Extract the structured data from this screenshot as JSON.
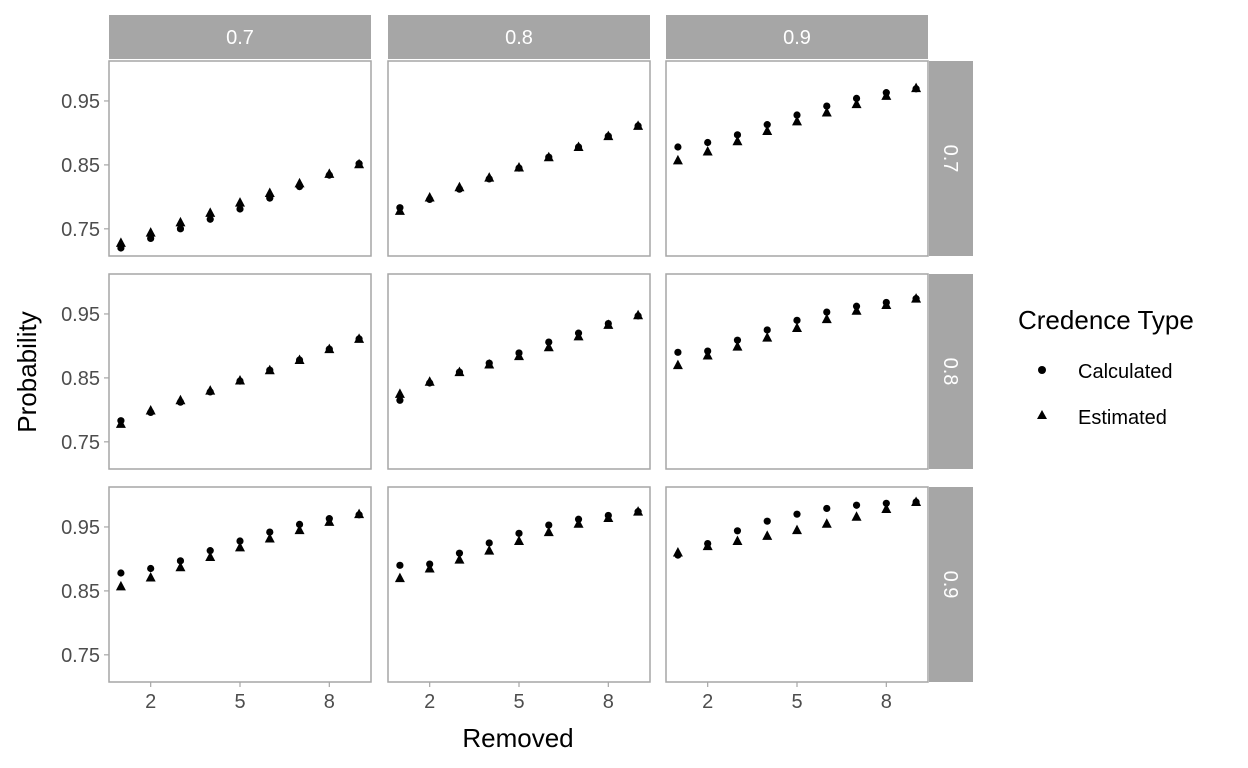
{
  "chart_data": {
    "type": "scatter",
    "facet_cols": [
      "0.7",
      "0.8",
      "0.9"
    ],
    "facet_rows": [
      "0.7",
      "0.8",
      "0.9"
    ],
    "xlabel": "Removed",
    "ylabel": "Probability",
    "x_ticks": [
      2,
      5,
      8
    ],
    "y_ticks": [
      0.75,
      0.85,
      0.95
    ],
    "x_ticks_labels": [
      "2",
      "5",
      "8"
    ],
    "y_ticks_labels": [
      "0.75",
      "0.85",
      "0.95"
    ],
    "xlim": [
      0.6,
      9.4
    ],
    "ylim": [
      0.7075,
      1.0125
    ],
    "grid": false,
    "legend": {
      "title": "Credence Type",
      "position": "right",
      "entries": [
        {
          "name": "Calculated",
          "shape": "circle"
        },
        {
          "name": "Estimated",
          "shape": "triangle"
        }
      ]
    },
    "x": [
      1,
      2,
      3,
      4,
      5,
      6,
      7,
      8,
      9
    ],
    "panels": [
      {
        "col": "0.7",
        "row": "0.7",
        "calculated": [
          0.72,
          0.735,
          0.75,
          0.765,
          0.781,
          0.798,
          0.816,
          0.834,
          0.852
        ],
        "estimated": [
          0.728,
          0.744,
          0.76,
          0.775,
          0.791,
          0.806,
          0.821,
          0.836,
          0.851
        ]
      },
      {
        "col": "0.8",
        "row": "0.7",
        "calculated": [
          0.783,
          0.796,
          0.812,
          0.828,
          0.845,
          0.862,
          0.878,
          0.895,
          0.911
        ],
        "estimated": [
          0.778,
          0.799,
          0.815,
          0.83,
          0.846,
          0.862,
          0.878,
          0.895,
          0.911
        ]
      },
      {
        "col": "0.9",
        "row": "0.7",
        "calculated": [
          0.878,
          0.885,
          0.897,
          0.913,
          0.928,
          0.942,
          0.954,
          0.963,
          0.969
        ],
        "estimated": [
          0.857,
          0.871,
          0.887,
          0.903,
          0.918,
          0.932,
          0.945,
          0.958,
          0.97
        ]
      },
      {
        "col": "0.7",
        "row": "0.8",
        "calculated": [
          0.783,
          0.796,
          0.812,
          0.828,
          0.845,
          0.862,
          0.878,
          0.895,
          0.911
        ],
        "estimated": [
          0.778,
          0.799,
          0.815,
          0.83,
          0.846,
          0.862,
          0.878,
          0.895,
          0.911
        ]
      },
      {
        "col": "0.8",
        "row": "0.8",
        "calculated": [
          0.815,
          0.842,
          0.859,
          0.873,
          0.889,
          0.906,
          0.92,
          0.935,
          0.947
        ],
        "estimated": [
          0.825,
          0.844,
          0.859,
          0.871,
          0.884,
          0.898,
          0.915,
          0.933,
          0.948
        ]
      },
      {
        "col": "0.9",
        "row": "0.8",
        "calculated": [
          0.89,
          0.892,
          0.909,
          0.925,
          0.94,
          0.953,
          0.962,
          0.968,
          0.974
        ],
        "estimated": [
          0.87,
          0.885,
          0.899,
          0.913,
          0.928,
          0.942,
          0.955,
          0.964,
          0.974
        ]
      },
      {
        "col": "0.7",
        "row": "0.9",
        "calculated": [
          0.878,
          0.885,
          0.897,
          0.913,
          0.928,
          0.942,
          0.954,
          0.963,
          0.969
        ],
        "estimated": [
          0.857,
          0.871,
          0.887,
          0.903,
          0.918,
          0.932,
          0.945,
          0.958,
          0.97
        ]
      },
      {
        "col": "0.8",
        "row": "0.9",
        "calculated": [
          0.89,
          0.892,
          0.909,
          0.925,
          0.94,
          0.953,
          0.962,
          0.968,
          0.974
        ],
        "estimated": [
          0.87,
          0.885,
          0.899,
          0.913,
          0.928,
          0.942,
          0.955,
          0.964,
          0.974
        ]
      },
      {
        "col": "0.9",
        "row": "0.9",
        "calculated": [
          0.906,
          0.924,
          0.944,
          0.959,
          0.97,
          0.979,
          0.984,
          0.987,
          0.989
        ],
        "estimated": [
          0.91,
          0.92,
          0.928,
          0.936,
          0.945,
          0.955,
          0.966,
          0.978,
          0.989
        ]
      }
    ],
    "colors": {
      "strip": "#a6a6a6",
      "panel_border": "#a6a6a6",
      "tick_text": "#4d4d4d",
      "points": "#000000"
    }
  }
}
